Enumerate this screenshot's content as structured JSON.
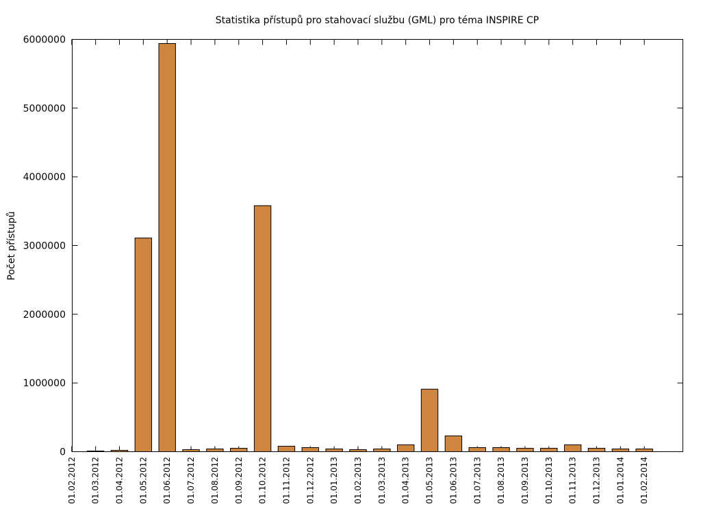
{
  "chart_data": {
    "type": "bar",
    "title": "Statistika přístupů pro stahovací službu (GML) pro téma INSPIRE CP",
    "xlabel": "",
    "ylabel": "Počet přístupů",
    "ylim": [
      0,
      6000000
    ],
    "yticks": [
      "0",
      "1000000",
      "2000000",
      "3000000",
      "4000000",
      "5000000",
      "6000000"
    ],
    "grid": false,
    "legend": "none",
    "bar_color": "#cd853f",
    "bar_edge_color": "#000000",
    "categories": [
      "01.02.2012",
      "01.03.2012",
      "01.04.2012",
      "01.05.2012",
      "01.06.2012",
      "01.07.2012",
      "01.08.2012",
      "01.09.2012",
      "01.10.2012",
      "01.11.2012",
      "01.12.2012",
      "01.01.2013",
      "01.02.2013",
      "01.03.2013",
      "01.04.2013",
      "01.05.2013",
      "01.06.2013",
      "01.07.2013",
      "01.08.2013",
      "01.09.2013",
      "01.10.2013",
      "01.11.2013",
      "01.12.2013",
      "01.01.2014",
      "01.02.2014"
    ],
    "values": [
      0,
      10000,
      20000,
      3110000,
      5940000,
      30000,
      40000,
      50000,
      3580000,
      80000,
      60000,
      40000,
      30000,
      40000,
      100000,
      910000,
      230000,
      60000,
      60000,
      50000,
      50000,
      100000,
      50000,
      40000,
      40000
    ]
  }
}
